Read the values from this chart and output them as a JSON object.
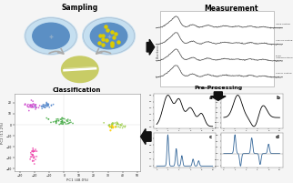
{
  "bg_color": "#f5f5f5",
  "sampling_text": "Sampling",
  "measurement_text": "Measurement",
  "preprocessing_text": "Pre-Processing",
  "classification_text": "Classification",
  "panel_labels": [
    "a",
    "b",
    "c",
    "d"
  ],
  "pca_xlabel": "PC1 (48.0%)",
  "pca_ylabel": "PC2 (11.2%)",
  "spec_labels": [
    "HDPE Coating",
    "Capsule Coating",
    "EC/PG\nCoating Material",
    "Shellac Coating"
  ],
  "cluster1_color": "#cc44cc",
  "cluster2_color": "#5588cc",
  "cluster3_color": "#44aa44",
  "cluster4_color": "#99cc44",
  "cluster5_color": "#ee44aa",
  "cluster_yellow": "#ffcc00",
  "arrow_color": "#111111",
  "circle_outer_color": "#c5dff0",
  "circle_inner_color": "#5b8fc4",
  "circle_dot_color": "#ddcc00",
  "tablet_color": "#c8cc66"
}
